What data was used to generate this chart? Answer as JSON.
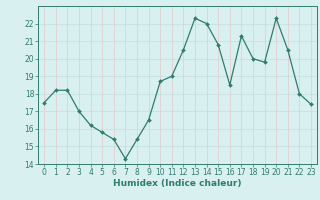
{
  "x": [
    0,
    1,
    2,
    3,
    4,
    5,
    6,
    7,
    8,
    9,
    10,
    11,
    12,
    13,
    14,
    15,
    16,
    17,
    18,
    19,
    20,
    21,
    22,
    23
  ],
  "y": [
    17.5,
    18.2,
    18.2,
    17.0,
    16.2,
    15.8,
    15.4,
    14.3,
    15.4,
    16.5,
    18.7,
    19.0,
    20.5,
    22.3,
    22.0,
    20.8,
    18.5,
    21.3,
    20.0,
    19.8,
    22.3,
    20.5,
    18.0,
    17.4
  ],
  "line_color": "#2e7d6e",
  "marker": "D",
  "marker_size": 2,
  "bg_color": "#d8f0f0",
  "grid_color": "#c8dede",
  "pink_grid_color": "#e8c8c8",
  "xlabel": "Humidex (Indice chaleur)",
  "ylim": [
    14,
    23
  ],
  "xlim": [
    -0.5,
    23.5
  ],
  "yticks": [
    14,
    15,
    16,
    17,
    18,
    19,
    20,
    21,
    22
  ],
  "xticks": [
    0,
    1,
    2,
    3,
    4,
    5,
    6,
    7,
    8,
    9,
    10,
    11,
    12,
    13,
    14,
    15,
    16,
    17,
    18,
    19,
    20,
    21,
    22,
    23
  ],
  "tick_color": "#2e7d6e",
  "axis_color": "#2e7d6e",
  "font_color": "#2e7d6e",
  "label_fontsize": 6.5,
  "tick_fontsize": 5.5
}
